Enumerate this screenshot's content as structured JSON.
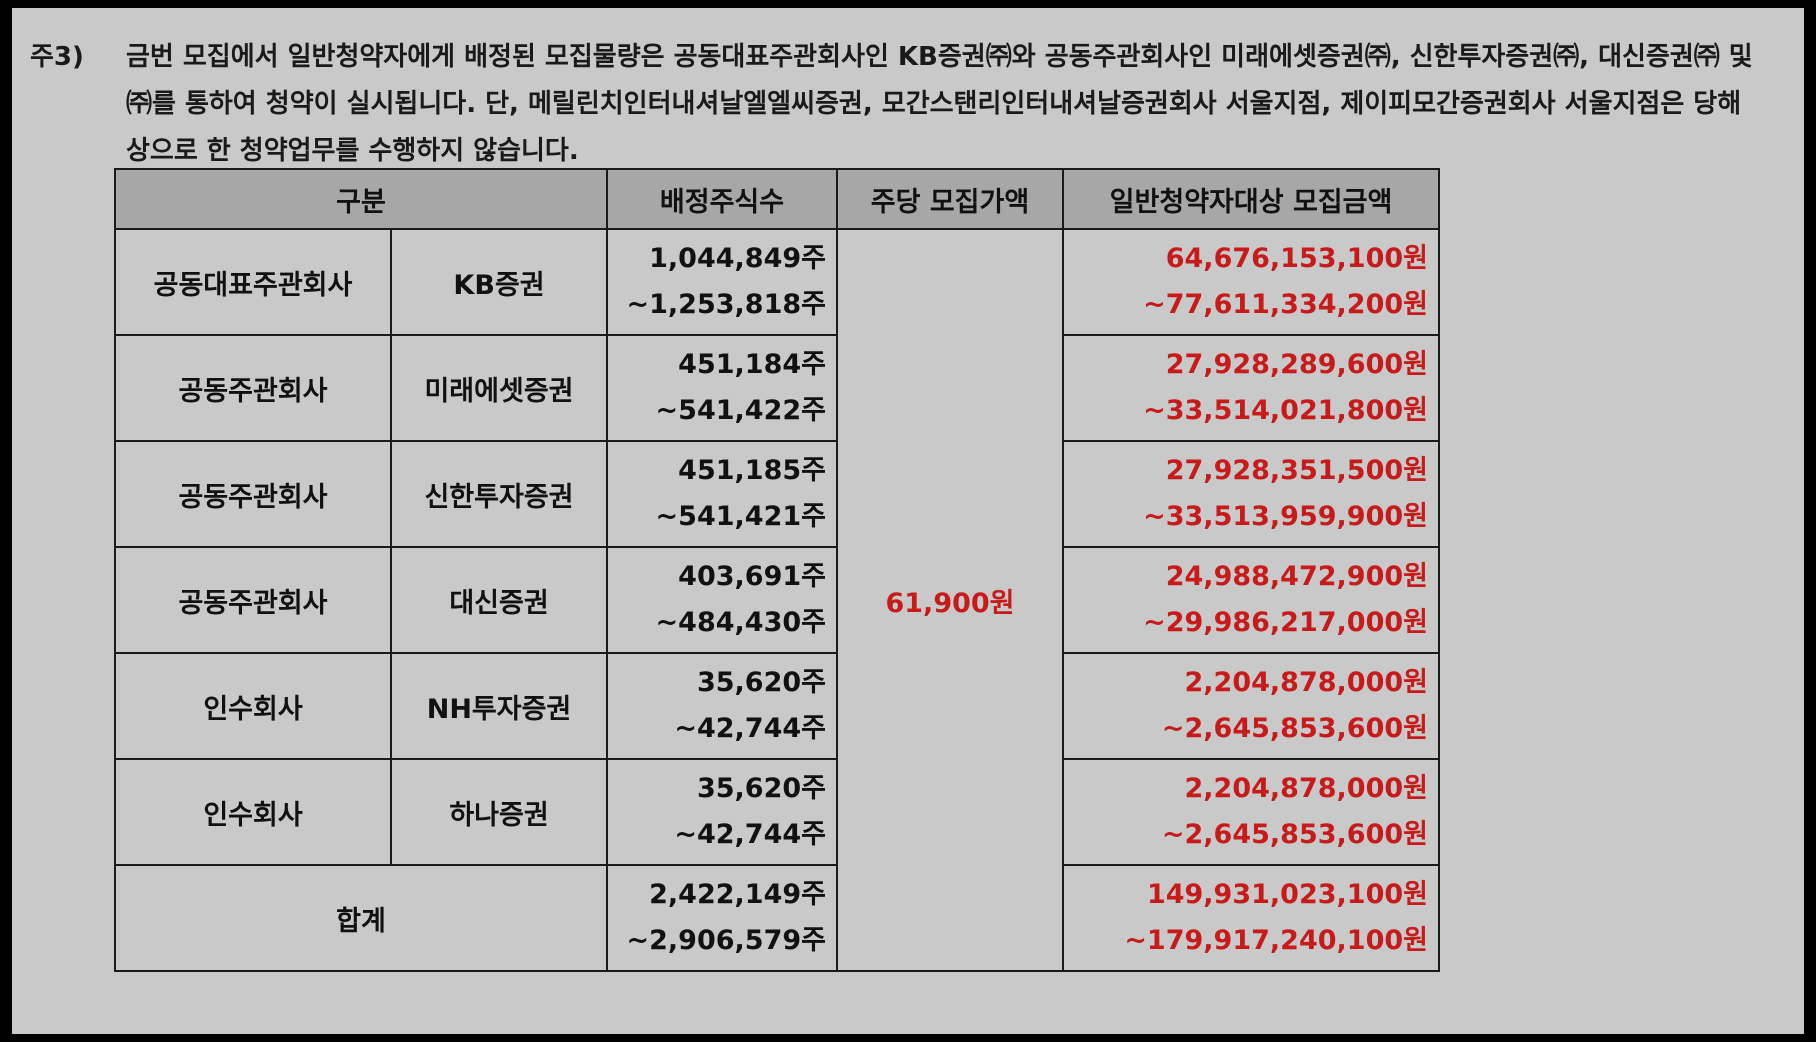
{
  "note": {
    "mark": "주3)",
    "lines": [
      "금번 모집에서 일반청약자에게 배정된 모집물량은 공동대표주관회사인 KB증권㈜와 공동주관회사인 미래에셋증권㈜, 신한투자증권㈜, 대신증권㈜ 및",
      "㈜를 통하여 청약이 실시됩니다. 단, 메릴린치인터내셔날엘엘씨증권, 모간스탠리인터내셔날증권회사 서울지점, 제이피모간증권회사 서울지점은 당해",
      "상으로 한 청약업무를 수행하지 않습니다."
    ]
  },
  "table": {
    "headers": [
      "구분",
      "배정주식수",
      "주당 모집가액",
      "일반청약자대상 모집금액"
    ],
    "price": "61,900원",
    "rows": [
      {
        "type": "공동대표주관회사",
        "firm": "KB증권",
        "shares_min": "1,044,849주",
        "shares_max": "~1,253,818주",
        "amount_min": "64,676,153,100원",
        "amount_max": "~77,611,334,200원"
      },
      {
        "type": "공동주관회사",
        "firm": "미래에셋증권",
        "shares_min": "451,184주",
        "shares_max": "~541,422주",
        "amount_min": "27,928,289,600원",
        "amount_max": "~33,514,021,800원"
      },
      {
        "type": "공동주관회사",
        "firm": "신한투자증권",
        "shares_min": "451,185주",
        "shares_max": "~541,421주",
        "amount_min": "27,928,351,500원",
        "amount_max": "~33,513,959,900원"
      },
      {
        "type": "공동주관회사",
        "firm": "대신증권",
        "shares_min": "403,691주",
        "shares_max": "~484,430주",
        "amount_min": "24,988,472,900원",
        "amount_max": "~29,986,217,000원"
      },
      {
        "type": "인수회사",
        "firm": "NH투자증권",
        "shares_min": "35,620주",
        "shares_max": "~42,744주",
        "amount_min": "2,204,878,000원",
        "amount_max": "~2,645,853,600원"
      },
      {
        "type": "인수회사",
        "firm": "하나증권",
        "shares_min": "35,620주",
        "shares_max": "~42,744주",
        "amount_min": "2,204,878,000원",
        "amount_max": "~2,645,853,600원"
      }
    ],
    "total": {
      "label": "합계",
      "shares_min": "2,422,149주",
      "shares_max": "~2,906,579주",
      "amount_min": "149,931,023,100원",
      "amount_max": "~179,917,240,100원"
    }
  },
  "colors": {
    "accent_red": "#c71b1b",
    "header_bg": "#a7a7a7",
    "page_bg": "#c9c9c9"
  }
}
